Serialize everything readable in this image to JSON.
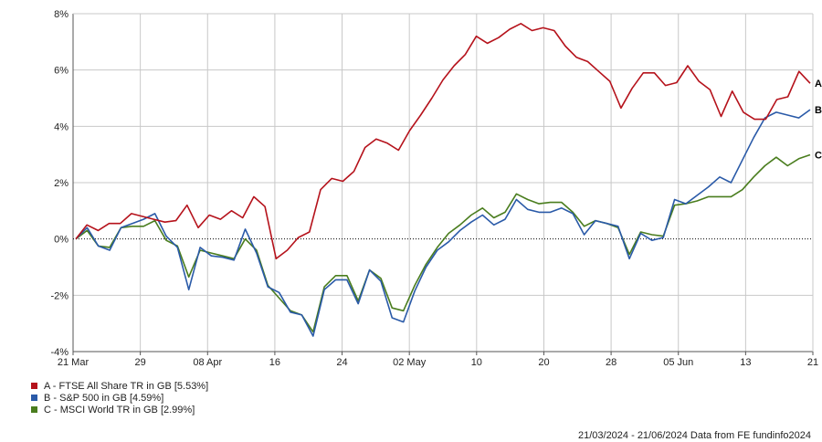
{
  "chart_data": {
    "type": "line",
    "x_ticks": [
      "21 Mar",
      "29",
      "08 Apr",
      "16",
      "24",
      "02 May",
      "10",
      "20",
      "28",
      "05 Jun",
      "13",
      "21"
    ],
    "y_ticks": [
      "8%",
      "6%",
      "4%",
      "2%",
      "0%",
      "-2%",
      "-4%"
    ],
    "ylim": [
      -4,
      8
    ],
    "zero_line": true,
    "series": [
      {
        "key": "A",
        "name": "A - FTSE All Share TR in GB [5.53%]",
        "color": "#b5121b",
        "values": [
          0.0,
          0.5,
          0.3,
          0.55,
          0.55,
          0.9,
          0.8,
          0.7,
          0.6,
          0.65,
          1.2,
          0.4,
          0.85,
          0.7,
          1.0,
          0.75,
          1.5,
          1.15,
          -0.7,
          -0.4,
          0.05,
          0.25,
          1.75,
          2.15,
          2.05,
          2.4,
          3.25,
          3.55,
          3.4,
          3.15,
          3.85,
          4.4,
          5.0,
          5.65,
          6.15,
          6.55,
          7.2,
          6.95,
          7.15,
          7.45,
          7.65,
          7.4,
          7.5,
          7.4,
          6.85,
          6.45,
          6.3,
          5.95,
          5.6,
          4.65,
          5.35,
          5.9,
          5.9,
          5.45,
          5.55,
          6.15,
          5.6,
          5.3,
          4.35,
          5.25,
          4.5,
          4.25,
          4.25,
          4.95,
          5.05,
          5.95,
          5.53
        ]
      },
      {
        "key": "B",
        "name": "B - S&P 500 in GB [4.59%]",
        "color": "#2a5aa8",
        "values": [
          0.0,
          0.4,
          -0.25,
          -0.4,
          0.4,
          0.55,
          0.7,
          0.9,
          0.1,
          -0.3,
          -1.8,
          -0.3,
          -0.6,
          -0.65,
          -0.75,
          0.35,
          -0.5,
          -1.7,
          -1.9,
          -2.6,
          -2.7,
          -3.45,
          -1.8,
          -1.45,
          -1.45,
          -2.3,
          -1.1,
          -1.5,
          -2.8,
          -2.95,
          -1.85,
          -1.0,
          -0.4,
          -0.1,
          0.3,
          0.6,
          0.85,
          0.5,
          0.7,
          1.4,
          1.05,
          0.95,
          0.95,
          1.1,
          0.9,
          0.15,
          0.65,
          0.55,
          0.45,
          -0.7,
          0.2,
          -0.05,
          0.05,
          1.4,
          1.25,
          1.55,
          1.85,
          2.2,
          2.0,
          2.8,
          3.6,
          4.3,
          4.5,
          4.4,
          4.3,
          4.59
        ]
      },
      {
        "key": "C",
        "name": "C - MSCI World TR in GB [2.99%]",
        "color": "#4a7d1e",
        "values": [
          0.0,
          0.3,
          -0.25,
          -0.3,
          0.4,
          0.45,
          0.45,
          0.65,
          -0.05,
          -0.25,
          -1.35,
          -0.4,
          -0.5,
          -0.6,
          -0.7,
          0.0,
          -0.4,
          -1.65,
          -2.1,
          -2.55,
          -2.7,
          -3.3,
          -1.7,
          -1.3,
          -1.3,
          -2.2,
          -1.1,
          -1.4,
          -2.45,
          -2.55,
          -1.65,
          -0.9,
          -0.3,
          0.2,
          0.5,
          0.85,
          1.1,
          0.75,
          0.95,
          1.6,
          1.4,
          1.25,
          1.3,
          1.3,
          0.95,
          0.45,
          0.65,
          0.55,
          0.4,
          -0.55,
          0.25,
          0.15,
          0.1,
          1.2,
          1.25,
          1.35,
          1.5,
          1.5,
          1.5,
          1.75,
          2.2,
          2.6,
          2.9,
          2.6,
          2.85,
          2.99
        ]
      }
    ]
  },
  "legend": [
    {
      "label": "A - FTSE All Share TR in GB [5.53%]",
      "color": "#b5121b"
    },
    {
      "label": "B - S&P 500 in GB [4.59%]",
      "color": "#2a5aa8"
    },
    {
      "label": "C - MSCI World TR in GB [2.99%]",
      "color": "#4a7d1e"
    }
  ],
  "footer": "21/03/2024 - 21/06/2024 Data from FE fundinfo2024"
}
